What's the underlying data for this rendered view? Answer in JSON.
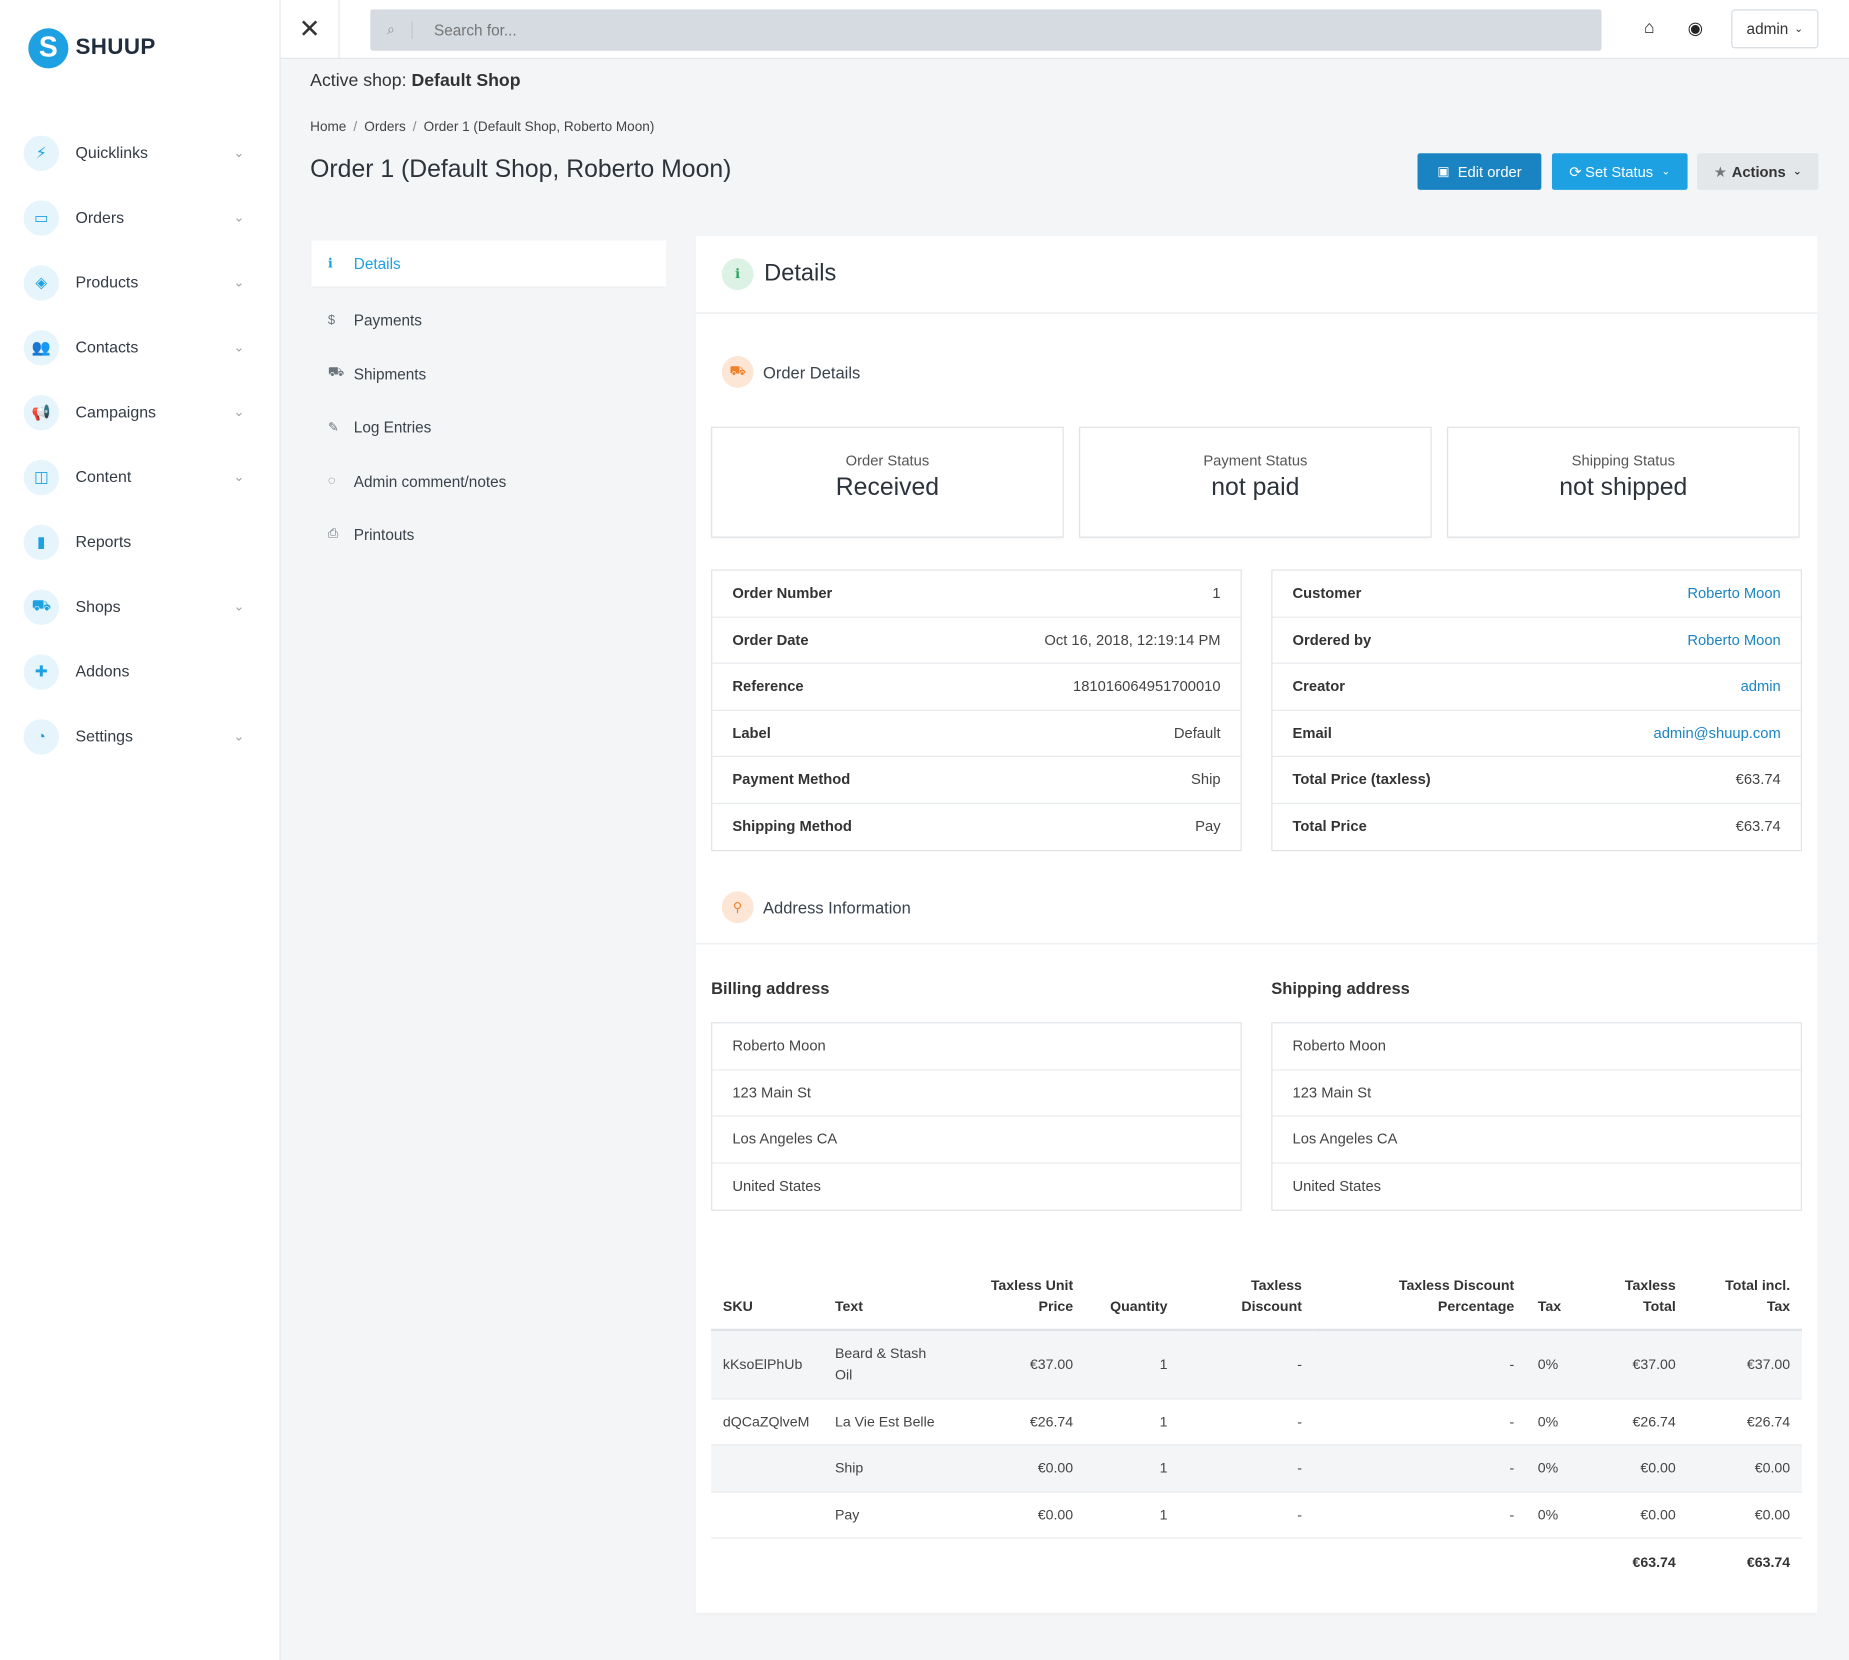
{
  "brand": {
    "name": "SHUUP",
    "mark": "S"
  },
  "nav": [
    {
      "label": "Quicklinks",
      "icon": "bolt-icon",
      "glyph": "⚡",
      "expandable": true
    },
    {
      "label": "Orders",
      "icon": "inbox-icon",
      "glyph": "▭",
      "expandable": true
    },
    {
      "label": "Products",
      "icon": "cube-icon",
      "glyph": "◈",
      "expandable": true
    },
    {
      "label": "Contacts",
      "icon": "users-icon",
      "glyph": "👥",
      "expandable": true
    },
    {
      "label": "Campaigns",
      "icon": "bullhorn-icon",
      "glyph": "📢",
      "expandable": true
    },
    {
      "label": "Content",
      "icon": "columns-icon",
      "glyph": "◫",
      "expandable": true
    },
    {
      "label": "Reports",
      "icon": "bar-chart-icon",
      "glyph": "▮",
      "expandable": false
    },
    {
      "label": "Shops",
      "icon": "basket-icon",
      "glyph": "⛟",
      "expandable": true
    },
    {
      "label": "Addons",
      "icon": "puzzle-icon",
      "glyph": "✚",
      "expandable": false
    },
    {
      "label": "Settings",
      "icon": "dashboard-icon",
      "glyph": "◔",
      "expandable": true
    }
  ],
  "topbar": {
    "search_placeholder": "Search for...",
    "user": "admin"
  },
  "active_shop": {
    "label": "Active shop:",
    "name": "Default Shop"
  },
  "breadcrumb": [
    "Home",
    "Orders",
    "Order 1 (Default Shop, Roberto Moon)"
  ],
  "page_title": "Order 1 (Default Shop, Roberto Moon)",
  "actions": {
    "edit": "Edit order",
    "status": "Set Status",
    "actions": "Actions"
  },
  "tabs": [
    {
      "label": "Details",
      "icon": "info-icon",
      "glyph": "ℹ",
      "active": true
    },
    {
      "label": "Payments",
      "icon": "dollar-icon",
      "glyph": "$",
      "active": false
    },
    {
      "label": "Shipments",
      "icon": "truck-icon",
      "glyph": "⛟",
      "active": false
    },
    {
      "label": "Log Entries",
      "icon": "pencil-icon",
      "glyph": "✎",
      "active": false
    },
    {
      "label": "Admin comment/notes",
      "icon": "comment-icon",
      "glyph": "◌",
      "active": false
    },
    {
      "label": "Printouts",
      "icon": "print-icon",
      "glyph": "⎙",
      "active": false
    }
  ],
  "details": {
    "title": "Details",
    "order_details_title": "Order Details",
    "statuses": [
      {
        "label": "Order Status",
        "value": "Received"
      },
      {
        "label": "Payment Status",
        "value": "not paid"
      },
      {
        "label": "Shipping Status",
        "value": "not shipped"
      }
    ],
    "order_info": [
      {
        "key": "Order Number",
        "value": "1"
      },
      {
        "key": "Order Date",
        "value": "Oct 16, 2018, 12:19:14 PM"
      },
      {
        "key": "Reference",
        "value": "181016064951700010"
      },
      {
        "key": "Label",
        "value": "Default"
      },
      {
        "key": "Payment Method",
        "value": "Ship"
      },
      {
        "key": "Shipping Method",
        "value": "Pay"
      }
    ],
    "customer_info": [
      {
        "key": "Customer",
        "value": "Roberto Moon",
        "link": true
      },
      {
        "key": "Ordered by",
        "value": "Roberto Moon",
        "link": true
      },
      {
        "key": "Creator",
        "value": "admin",
        "link": true
      },
      {
        "key": "Email",
        "value": "admin@shuup.com",
        "link": true
      },
      {
        "key": "Total Price (taxless)",
        "value": "€63.74",
        "link": false
      },
      {
        "key": "Total Price",
        "value": "€63.74",
        "link": false
      }
    ],
    "address_title": "Address Information",
    "billing": {
      "title": "Billing address",
      "lines": [
        "Roberto Moon",
        "123 Main St",
        "Los Angeles CA",
        "United States"
      ]
    },
    "shipping": {
      "title": "Shipping address",
      "lines": [
        "Roberto Moon",
        "123 Main St",
        "Los Angeles CA",
        "United States"
      ]
    }
  },
  "lines_table": {
    "headers": [
      "SKU",
      "Text",
      "Taxless Unit Price",
      "Quantity",
      "Taxless Discount",
      "Taxless Discount Percentage",
      "Tax",
      "Taxless Total",
      "Total incl. Tax"
    ],
    "rows": [
      [
        "kKsoElPhUb",
        "Beard & Stash Oil",
        "€37.00",
        "1",
        "-",
        "-",
        "0%",
        "€37.00",
        "€37.00"
      ],
      [
        "dQCaZQlveM",
        "La Vie Est Belle",
        "€26.74",
        "1",
        "-",
        "-",
        "0%",
        "€26.74",
        "€26.74"
      ],
      [
        "",
        "Ship",
        "€0.00",
        "1",
        "-",
        "-",
        "0%",
        "€0.00",
        "€0.00"
      ],
      [
        "",
        "Pay",
        "€0.00",
        "1",
        "-",
        "-",
        "0%",
        "€0.00",
        "€0.00"
      ]
    ],
    "totals": {
      "taxless_total": "€63.74",
      "total_incl_tax": "€63.74"
    }
  },
  "colors": {
    "accent": "#1da1e2",
    "primary_dark": "#1a84c3",
    "success": "#24a35a",
    "warning": "#f0802a"
  }
}
